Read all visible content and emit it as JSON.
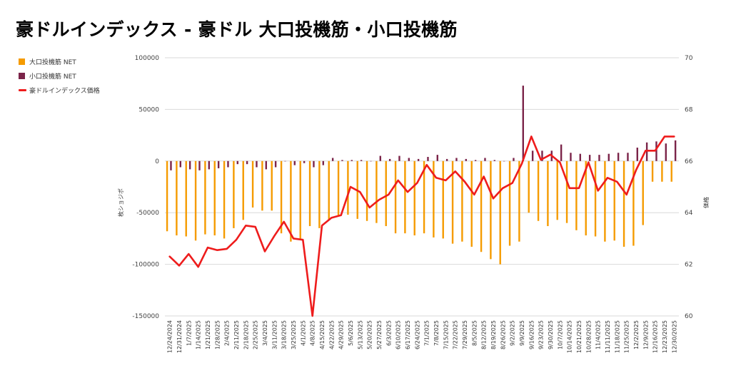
{
  "title": "豪ドルインデックス - 豪ドル 大口投機筋・小口投機筋",
  "legend": {
    "items": [
      {
        "label": "大口投機筋  NET",
        "color": "#f59b00",
        "kind": "box"
      },
      {
        "label": "小口投機筋  NET",
        "color": "#7b2449",
        "kind": "box"
      },
      {
        "label": "豪ドルインデックス価格",
        "color": "#ee1c1c",
        "kind": "line"
      }
    ]
  },
  "chart_data": {
    "type": "bar",
    "ylabel": "枚ショジポ",
    "y2label": "価格",
    "ylim": [
      -150000,
      100000
    ],
    "y2lim": [
      60,
      70
    ],
    "yticks": [
      "100000",
      "50000",
      "0",
      "-50000",
      "-100000",
      "-150000"
    ],
    "y2ticks": [
      "70",
      "68",
      "66",
      "64",
      "62",
      "60"
    ],
    "grid": true,
    "categories": [
      "12/24/2024",
      "12/31/2024",
      "1/7/2025",
      "1/14/2025",
      "1/21/2025",
      "1/28/2025",
      "2/4/2025",
      "2/11/2025",
      "2/18/2025",
      "2/25/2025",
      "3/4/2025",
      "3/11/2025",
      "3/18/2025",
      "3/25/2025",
      "4/1/2025",
      "4/8/2025",
      "4/15/2025",
      "4/22/2025",
      "4/29/2025",
      "5/6/2025",
      "5/13/2025",
      "5/20/2025",
      "5/27/2025",
      "6/3/2025",
      "6/10/2025",
      "6/17/2025",
      "6/24/2025",
      "7/1/2025",
      "7/8/2025",
      "7/15/2025",
      "7/22/2025",
      "7/29/2025",
      "8/5/2025",
      "8/12/2025",
      "8/19/2025",
      "8/26/2025",
      "9/2/2025",
      "9/9/2025",
      "9/16/2025",
      "9/23/2025",
      "9/30/2025",
      "10/7/2025",
      "10/14/2025",
      "10/21/2025",
      "10/28/2025",
      "11/4/2025",
      "11/11/2025",
      "11/18/2025",
      "11/25/2025",
      "12/2/2025",
      "12/9/2025",
      "12/16/2025",
      "12/23/2025",
      "12/30/2025"
    ],
    "x_tick_labels": [
      "12/24/2024",
      "12/31/2024",
      "1/7/2025",
      "1/14/2025",
      "1/21/2025",
      "1/28/2025",
      "2/4/2025",
      "2/11/2025",
      "2/18/2025",
      "2/25/2025",
      "3/4/2025",
      "3/11/2025",
      "3/18/2025",
      "3/25/2025",
      "4/1/2025",
      "4/8/2025",
      "4/15/2025",
      "4/22/2025",
      "4/29/2025",
      "5/6/2025",
      "5/13/2025",
      "5/20/2025",
      "5/27/2025",
      "6/3/2025",
      "6/10/2025",
      "6/17/2025",
      "6/24/2025",
      "7/1/2025",
      "7/8/2025",
      "7/15/2025",
      "7/22/2025",
      "7/29/2025",
      "8/5/2025",
      "8/12/2025",
      "8/19/2025",
      "8/26/2025",
      "9/2/2025",
      "9/9/2025",
      "9/16/2025",
      "9/23/2025",
      "9/30/2025",
      "10/7/2025",
      "10/14/2025",
      "10/21/2025",
      "10/28/2025",
      "11/4/2025",
      "11/11/2025",
      "11/18/2025",
      "11/25/2025",
      "12/2/2025",
      "12/9/2025",
      "12/16/2025",
      "12/23/2025",
      "12/30/2025"
    ],
    "series": [
      {
        "name": "大口投機筋  NET",
        "type": "bar",
        "axis": "left",
        "color": "#f59b00",
        "values": [
          -68000,
          -72000,
          -73000,
          -77000,
          -71000,
          -72000,
          -75000,
          -65000,
          -57000,
          -45000,
          -48000,
          -48000,
          -70000,
          -78000,
          -75000,
          -63000,
          -65000,
          -57000,
          -53000,
          -52000,
          -56000,
          -58000,
          -60000,
          -63000,
          -70000,
          -70000,
          -72000,
          -70000,
          -74000,
          -75000,
          -80000,
          -78000,
          -83000,
          -88000,
          -95000,
          -100000,
          -82000,
          -78000,
          -50000,
          -58000,
          -63000,
          -57000,
          -60000,
          -67000,
          -72000,
          -73000,
          -78000,
          -77000,
          -83000,
          -82000,
          -62000,
          -20000,
          -20000,
          -20000
        ]
      },
      {
        "name": "小口投機筋  NET",
        "type": "bar",
        "axis": "left",
        "color": "#7b2449",
        "values": [
          -9000,
          -6000,
          -8000,
          -9000,
          -8000,
          -7000,
          -6000,
          -3000,
          -3000,
          -6000,
          -8000,
          -6000,
          0,
          -4000,
          -2000,
          -6000,
          -4000,
          3000,
          1000,
          1000,
          1000,
          0,
          5000,
          2000,
          5000,
          3000,
          2000,
          4000,
          6000,
          2000,
          3000,
          2000,
          1000,
          3000,
          1000,
          0,
          3000,
          73000,
          10000,
          10000,
          10000,
          16000,
          8000,
          7000,
          6000,
          6000,
          7000,
          8000,
          8000,
          13000,
          18000,
          19000,
          17000,
          20000
        ]
      },
      {
        "name": "豪ドルインデックス価格",
        "type": "line",
        "axis": "right",
        "color": "#ee1c1c",
        "values": [
          62.3,
          61.95,
          62.4,
          61.9,
          62.65,
          62.55,
          62.6,
          62.95,
          63.5,
          63.45,
          62.5,
          63.1,
          63.65,
          63.0,
          62.95,
          60.0,
          63.5,
          63.8,
          63.9,
          65.0,
          64.8,
          64.2,
          64.5,
          64.7,
          65.25,
          64.8,
          65.15,
          65.85,
          65.35,
          65.25,
          65.6,
          65.2,
          64.7,
          65.4,
          64.55,
          64.95,
          65.15,
          65.9,
          66.95,
          66.05,
          66.25,
          65.95,
          64.95,
          64.95,
          65.95,
          64.85,
          65.35,
          65.2,
          64.7,
          65.65,
          66.4,
          66.4,
          66.95,
          66.95
        ]
      }
    ]
  }
}
